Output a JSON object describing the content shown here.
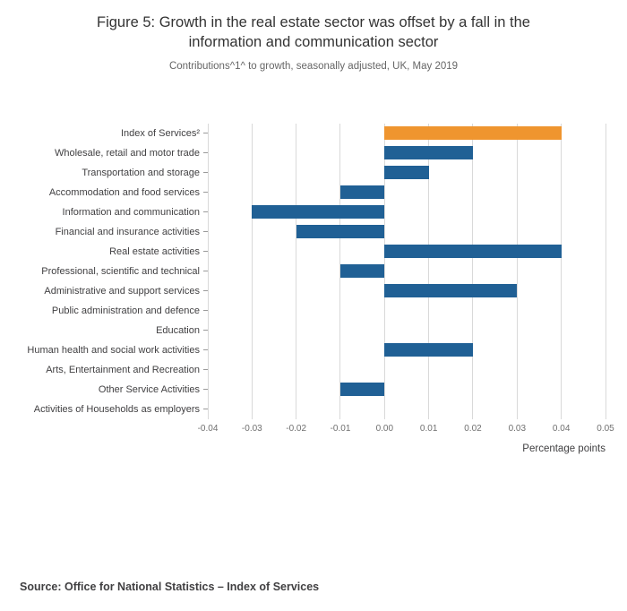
{
  "chart_data": {
    "type": "bar",
    "orientation": "horizontal",
    "title": "Figure 5: Growth in the real estate sector was offset by a fall in the information and communication sector",
    "subtitle": "Contributions^1^ to growth, seasonally adjusted, UK, May 2019",
    "source": "Source: Office for National Statistics – Index of Services",
    "categories": [
      "Index of Services²",
      "Wholesale, retail and motor trade",
      "Transportation and storage",
      "Accommodation and food services",
      "Information and communication",
      "Financial and insurance activities",
      "Real estate activities",
      "Professional, scientific and technical",
      "Administrative and support services",
      "Public administration and defence",
      "Education",
      "Human health and social work activities",
      "Arts, Entertainment and Recreation",
      "Other Service Activities",
      "Activities of Households as employers"
    ],
    "values": [
      0.04,
      0.02,
      0.01,
      -0.01,
      -0.03,
      -0.02,
      0.04,
      -0.01,
      0.03,
      0.0,
      0.0,
      0.02,
      0.0,
      -0.01,
      0.0
    ],
    "highlight_index": 0,
    "colors": {
      "bar": "#206095",
      "highlight": "#ef952f",
      "grid": "#d9d9d9"
    },
    "xlabel": "Percentage points",
    "xlim": [
      -0.04,
      0.05
    ],
    "xtick_labels": [
      "-0.04",
      "-0.03",
      "-0.02",
      "-0.01",
      "0.00",
      "0.01",
      "0.02",
      "0.03",
      "0.04",
      "0.05"
    ],
    "grid": true,
    "legend": "none"
  }
}
